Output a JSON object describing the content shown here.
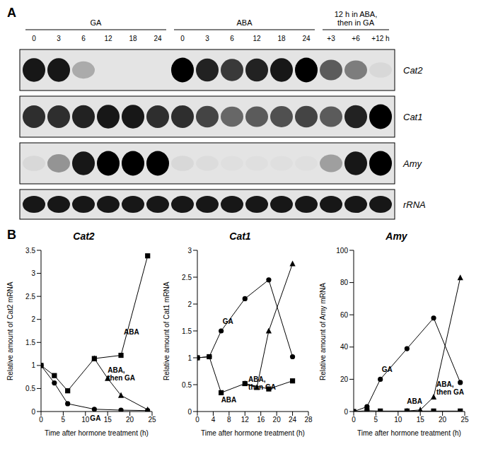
{
  "panel_a": {
    "label": "A",
    "groups": [
      {
        "label": "GA",
        "lanes": [
          "0",
          "3",
          "6",
          "12",
          "18",
          "24"
        ]
      },
      {
        "label": "ABA",
        "lanes": [
          "0",
          "3",
          "6",
          "12",
          "18",
          "24"
        ]
      },
      {
        "label": "12 h in ABA, then in GA",
        "lanes": [
          "+3",
          "+6",
          "+12 h"
        ]
      }
    ],
    "rows": [
      {
        "label": "Cat2",
        "intensity": [
          0.9,
          0.9,
          0.25,
          0,
          0,
          0,
          1,
          0.85,
          0.75,
          0.85,
          0.9,
          1,
          0.6,
          0.45,
          0.05
        ]
      },
      {
        "label": "Cat1",
        "intensity": [
          0.8,
          0.8,
          0.85,
          0.9,
          0.9,
          0.8,
          0.8,
          0.7,
          0.55,
          0.6,
          0.65,
          0.7,
          0.6,
          0.85,
          1
        ]
      },
      {
        "label": "Amy",
        "intensity": [
          0.05,
          0.35,
          0.9,
          1,
          1,
          1,
          0.05,
          0.03,
          0.02,
          0.02,
          0.02,
          0.02,
          0.3,
          0.9,
          1
        ]
      },
      {
        "label": "rRNA",
        "intensity": [
          0.9,
          0.9,
          0.9,
          0.9,
          0.9,
          0.9,
          0.9,
          0.9,
          0.9,
          0.9,
          0.9,
          0.9,
          0.9,
          0.9,
          0.9
        ]
      }
    ]
  },
  "panel_b_label": "B",
  "chart_data": [
    {
      "type": "line",
      "title": "Cat2",
      "x_label": "Time after hormone treatment (h)",
      "y_label": "Relative amount of Cat2 mRNA",
      "xlim": [
        0,
        25
      ],
      "xticks": [
        0,
        5,
        10,
        15,
        20,
        25
      ],
      "ylim": [
        0,
        3.5
      ],
      "yticks": [
        0,
        0.5,
        1,
        1.5,
        2,
        2.5,
        3,
        3.5
      ],
      "series": [
        {
          "name": "GA",
          "color": "#000000",
          "marker": "circle",
          "x": [
            0,
            3,
            6,
            12,
            18,
            24
          ],
          "values": [
            1,
            0.62,
            0.17,
            0.05,
            0.03,
            0.02
          ]
        },
        {
          "name": "ABA",
          "color": "#000000",
          "marker": "square",
          "x": [
            0,
            3,
            6,
            12,
            18,
            24
          ],
          "values": [
            1,
            0.78,
            0.45,
            1.15,
            1.22,
            3.38
          ]
        },
        {
          "name": "ABA, then GA",
          "color": "#000000",
          "marker": "triangle",
          "x": [
            12,
            15,
            18,
            24
          ],
          "values": [
            1.15,
            0.72,
            0.35,
            0.04
          ]
        }
      ]
    },
    {
      "type": "line",
      "title": "Cat1",
      "x_label": "Time after hormone treatment (h)",
      "y_label": "Relative amount of Cat1 mRNA",
      "xlim": [
        0,
        28
      ],
      "xticks": [
        0,
        4,
        8,
        12,
        16,
        20,
        24,
        28
      ],
      "ylim": [
        0,
        3
      ],
      "yticks": [
        0,
        0.5,
        1,
        1.5,
        2,
        2.5,
        3
      ],
      "series": [
        {
          "name": "GA",
          "color": "#000000",
          "marker": "circle",
          "x": [
            0,
            3,
            6,
            12,
            18,
            24
          ],
          "values": [
            1,
            1.02,
            1.5,
            2.1,
            2.45,
            1.02
          ]
        },
        {
          "name": "ABA",
          "color": "#000000",
          "marker": "square",
          "x": [
            0,
            3,
            6,
            12,
            18,
            24
          ],
          "values": [
            1,
            1.02,
            0.35,
            0.52,
            0.42,
            0.57
          ]
        },
        {
          "name": "ABA, then GA",
          "color": "#000000",
          "marker": "triangle",
          "x": [
            12,
            15,
            18,
            24
          ],
          "values": [
            0.52,
            0.45,
            1.5,
            2.75
          ]
        }
      ]
    },
    {
      "type": "line",
      "title": "Amy",
      "x_label": "Time after hormone treatment (h)",
      "y_label": "Relative amount of Amy mRNA",
      "xlim": [
        0,
        25
      ],
      "xticks": [
        0,
        5,
        10,
        15,
        20,
        25
      ],
      "ylim": [
        0,
        100
      ],
      "yticks": [
        0,
        20,
        40,
        60,
        80,
        100
      ],
      "series": [
        {
          "name": "GA",
          "color": "#000000",
          "marker": "circle",
          "x": [
            0,
            3,
            6,
            12,
            18,
            24
          ],
          "values": [
            0,
            3,
            20,
            39,
            58,
            18
          ]
        },
        {
          "name": "ABA",
          "color": "#000000",
          "marker": "square",
          "x": [
            0,
            3,
            6,
            12,
            18,
            24
          ],
          "values": [
            0,
            0.5,
            0.3,
            0.3,
            0.3,
            0.3
          ]
        },
        {
          "name": "ABA, then GA",
          "color": "#000000",
          "marker": "triangle",
          "x": [
            12,
            15,
            18,
            24
          ],
          "values": [
            0.3,
            1,
            9,
            83
          ]
        }
      ]
    }
  ]
}
